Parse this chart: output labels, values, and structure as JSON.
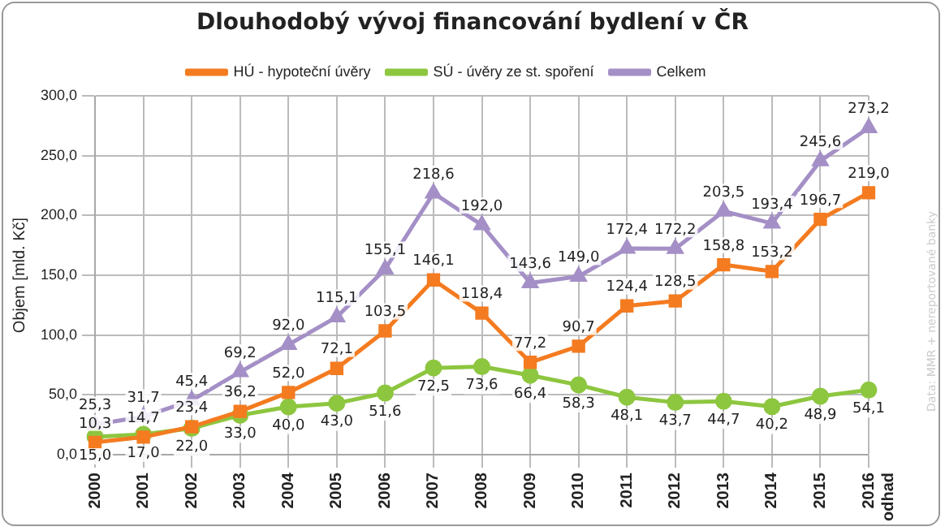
{
  "chart_data": {
    "type": "line",
    "title": "Dlouhodobý vývoj financování bydlení v ČR",
    "ylabel": "Objem [mld. Kč]",
    "categories": [
      "2000",
      "2001",
      "2002",
      "2003",
      "2004",
      "2005",
      "2006",
      "2007",
      "2008",
      "2009",
      "2010",
      "2011",
      "2012",
      "2013",
      "2014",
      "2015",
      "2016 odhad"
    ],
    "series": [
      {
        "name": "HÚ - hypoteční úvěry",
        "color": "#f47b20",
        "marker": "square",
        "values": [
          10.3,
          14.7,
          23.4,
          36.2,
          52.0,
          72.1,
          103.5,
          146.1,
          118.4,
          77.2,
          90.7,
          124.4,
          128.5,
          158.8,
          153.2,
          196.7,
          219.0
        ],
        "value_labels": [
          "10,3",
          "14,7",
          "23,4",
          "36,2",
          "52,0",
          "72,1",
          "103,5",
          "146,1",
          "118,4",
          "77,2",
          "90,7",
          "124,4",
          "128,5",
          "158,8",
          "153,2",
          "196,7",
          "219,0"
        ]
      },
      {
        "name": "SÚ - úvěry ze st. spoření",
        "color": "#8dc63f",
        "marker": "circle",
        "values": [
          15.0,
          17.0,
          22.0,
          33.0,
          40.0,
          43.0,
          51.6,
          72.5,
          73.6,
          66.4,
          58.3,
          48.1,
          43.7,
          44.7,
          40.2,
          48.9,
          54.1
        ],
        "value_labels": [
          "15,0",
          "17,0",
          "22,0",
          "33,0",
          "40,0",
          "43,0",
          "51,6",
          "72,5",
          "73,6",
          "66,4",
          "58,3",
          "48,1",
          "43,7",
          "44,7",
          "40,2",
          "48,9",
          "54,1"
        ]
      },
      {
        "name": "Celkem",
        "color": "#a48fc6",
        "marker": "triangle",
        "values": [
          25.3,
          31.7,
          45.4,
          69.2,
          92.0,
          115.1,
          155.1,
          218.6,
          192.0,
          143.6,
          149.0,
          172.4,
          172.2,
          203.5,
          193.4,
          245.6,
          273.2
        ],
        "value_labels": [
          "25,3",
          "31,7",
          "45,4",
          "69,2",
          "92,0",
          "115,1",
          "155,1",
          "218,6",
          "192,0",
          "143,6",
          "149,0",
          "172,4",
          "172,2",
          "203,5",
          "193,4",
          "245,6",
          "273,2"
        ]
      }
    ],
    "ylim": [
      0,
      300
    ],
    "yticks": [
      {
        "value": 0,
        "label": "0,0"
      },
      {
        "value": 50,
        "label": "50,0"
      },
      {
        "value": 100,
        "label": "100,0"
      },
      {
        "value": 150,
        "label": "150,0"
      },
      {
        "value": 200,
        "label": "200,0"
      },
      {
        "value": 250,
        "label": "250,0"
      },
      {
        "value": 300,
        "label": "300,0"
      }
    ],
    "grid": true,
    "legend": "top",
    "annotations": [
      "Data: MMR + nereportované banky"
    ]
  }
}
